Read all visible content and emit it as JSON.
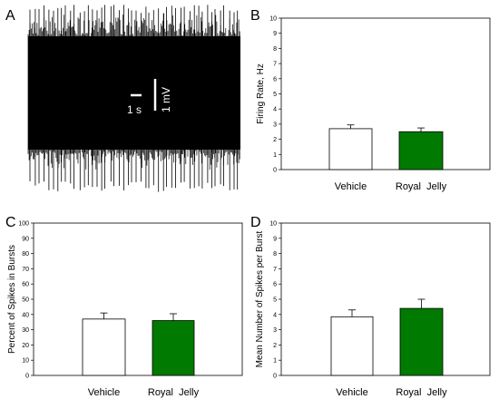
{
  "panels": {
    "a": {
      "letter": "A",
      "time_scale": "1 s",
      "voltage_scale": "1 mV"
    },
    "b": {
      "letter": "B"
    },
    "c": {
      "letter": "C"
    },
    "d": {
      "letter": "D"
    }
  },
  "colors": {
    "vehicle": "#ffffff",
    "royal_jelly": "#007a00",
    "trace": "#000000"
  },
  "chart_data": [
    {
      "id": "b",
      "type": "bar",
      "categories": [
        "Vehicle",
        "Royal  Jelly"
      ],
      "values": [
        2.7,
        2.5
      ],
      "errors": [
        0.25,
        0.25
      ],
      "ylabel": "Firing Rate, Hz",
      "ylim": [
        0,
        10
      ],
      "yticks": [
        0,
        1,
        2,
        3,
        4,
        5,
        6,
        7,
        8,
        9,
        10
      ]
    },
    {
      "id": "c",
      "type": "bar",
      "categories": [
        "Vehicle",
        "Royal  Jelly"
      ],
      "values": [
        37,
        36
      ],
      "errors": [
        4,
        4.5
      ],
      "ylabel": "Percent of Spikes in Bursts",
      "ylim": [
        0,
        100
      ],
      "yticks": [
        0,
        10,
        20,
        30,
        40,
        50,
        60,
        70,
        80,
        90,
        100
      ]
    },
    {
      "id": "d",
      "type": "bar",
      "categories": [
        "Vehicle",
        "Royal  Jelly"
      ],
      "values": [
        3.85,
        4.4
      ],
      "errors": [
        0.45,
        0.6
      ],
      "ylabel": "Mean Number of Spikes per Burst",
      "ylim": [
        0,
        10
      ],
      "yticks": [
        0,
        1,
        2,
        3,
        4,
        5,
        6,
        7,
        8,
        9,
        10
      ]
    }
  ]
}
